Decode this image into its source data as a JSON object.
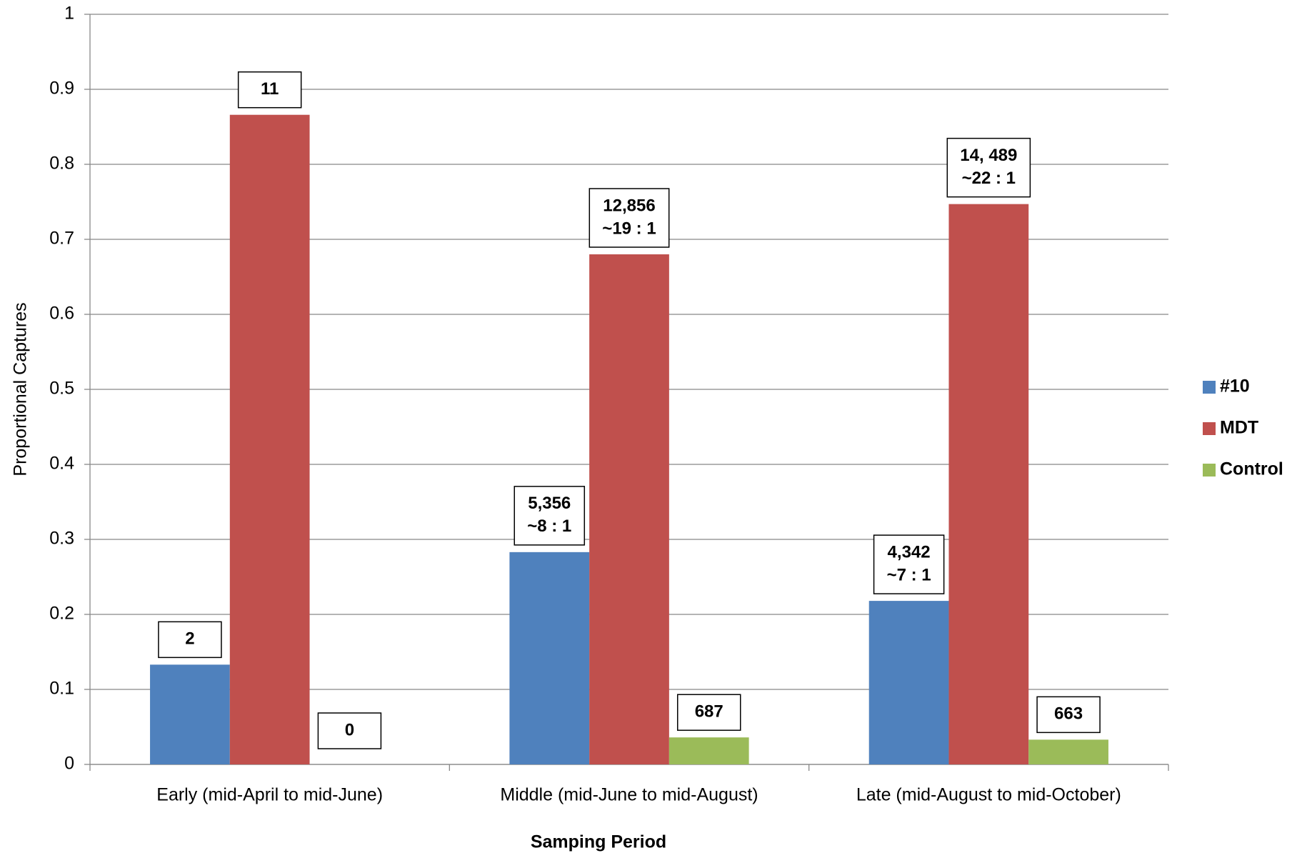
{
  "chart_data": {
    "type": "bar",
    "y_label": "Proportional Captures",
    "x_label": "Samping Period",
    "categories": [
      "Early (mid-April to mid-June)",
      "Middle (mid-June to mid-August)",
      "Late (mid-August to mid-October)"
    ],
    "series": [
      {
        "name": "#10",
        "color": "#4f81bd",
        "values": [
          0.133,
          0.283,
          0.218
        ],
        "annotations": [
          [
            "2"
          ],
          [
            "5,356",
            "~8 : 1"
          ],
          [
            "4,342",
            "~7 : 1"
          ]
        ]
      },
      {
        "name": "MDT",
        "color": "#c0504d",
        "values": [
          0.866,
          0.68,
          0.747
        ],
        "annotations": [
          [
            "11"
          ],
          [
            "12,856",
            "~19 : 1"
          ],
          [
            "14, 489",
            "~22 : 1"
          ]
        ]
      },
      {
        "name": "Control",
        "color": "#9bbb59",
        "values": [
          0,
          0.036,
          0.033
        ],
        "annotations": [
          [
            "0"
          ],
          [
            "687"
          ],
          [
            "663"
          ]
        ]
      }
    ],
    "ylim": [
      0,
      1
    ],
    "yticks": [
      0,
      0.1,
      0.2,
      0.3,
      0.4,
      0.5,
      0.6,
      0.7,
      0.8,
      0.9,
      1
    ],
    "grid": true,
    "legend": "right"
  }
}
